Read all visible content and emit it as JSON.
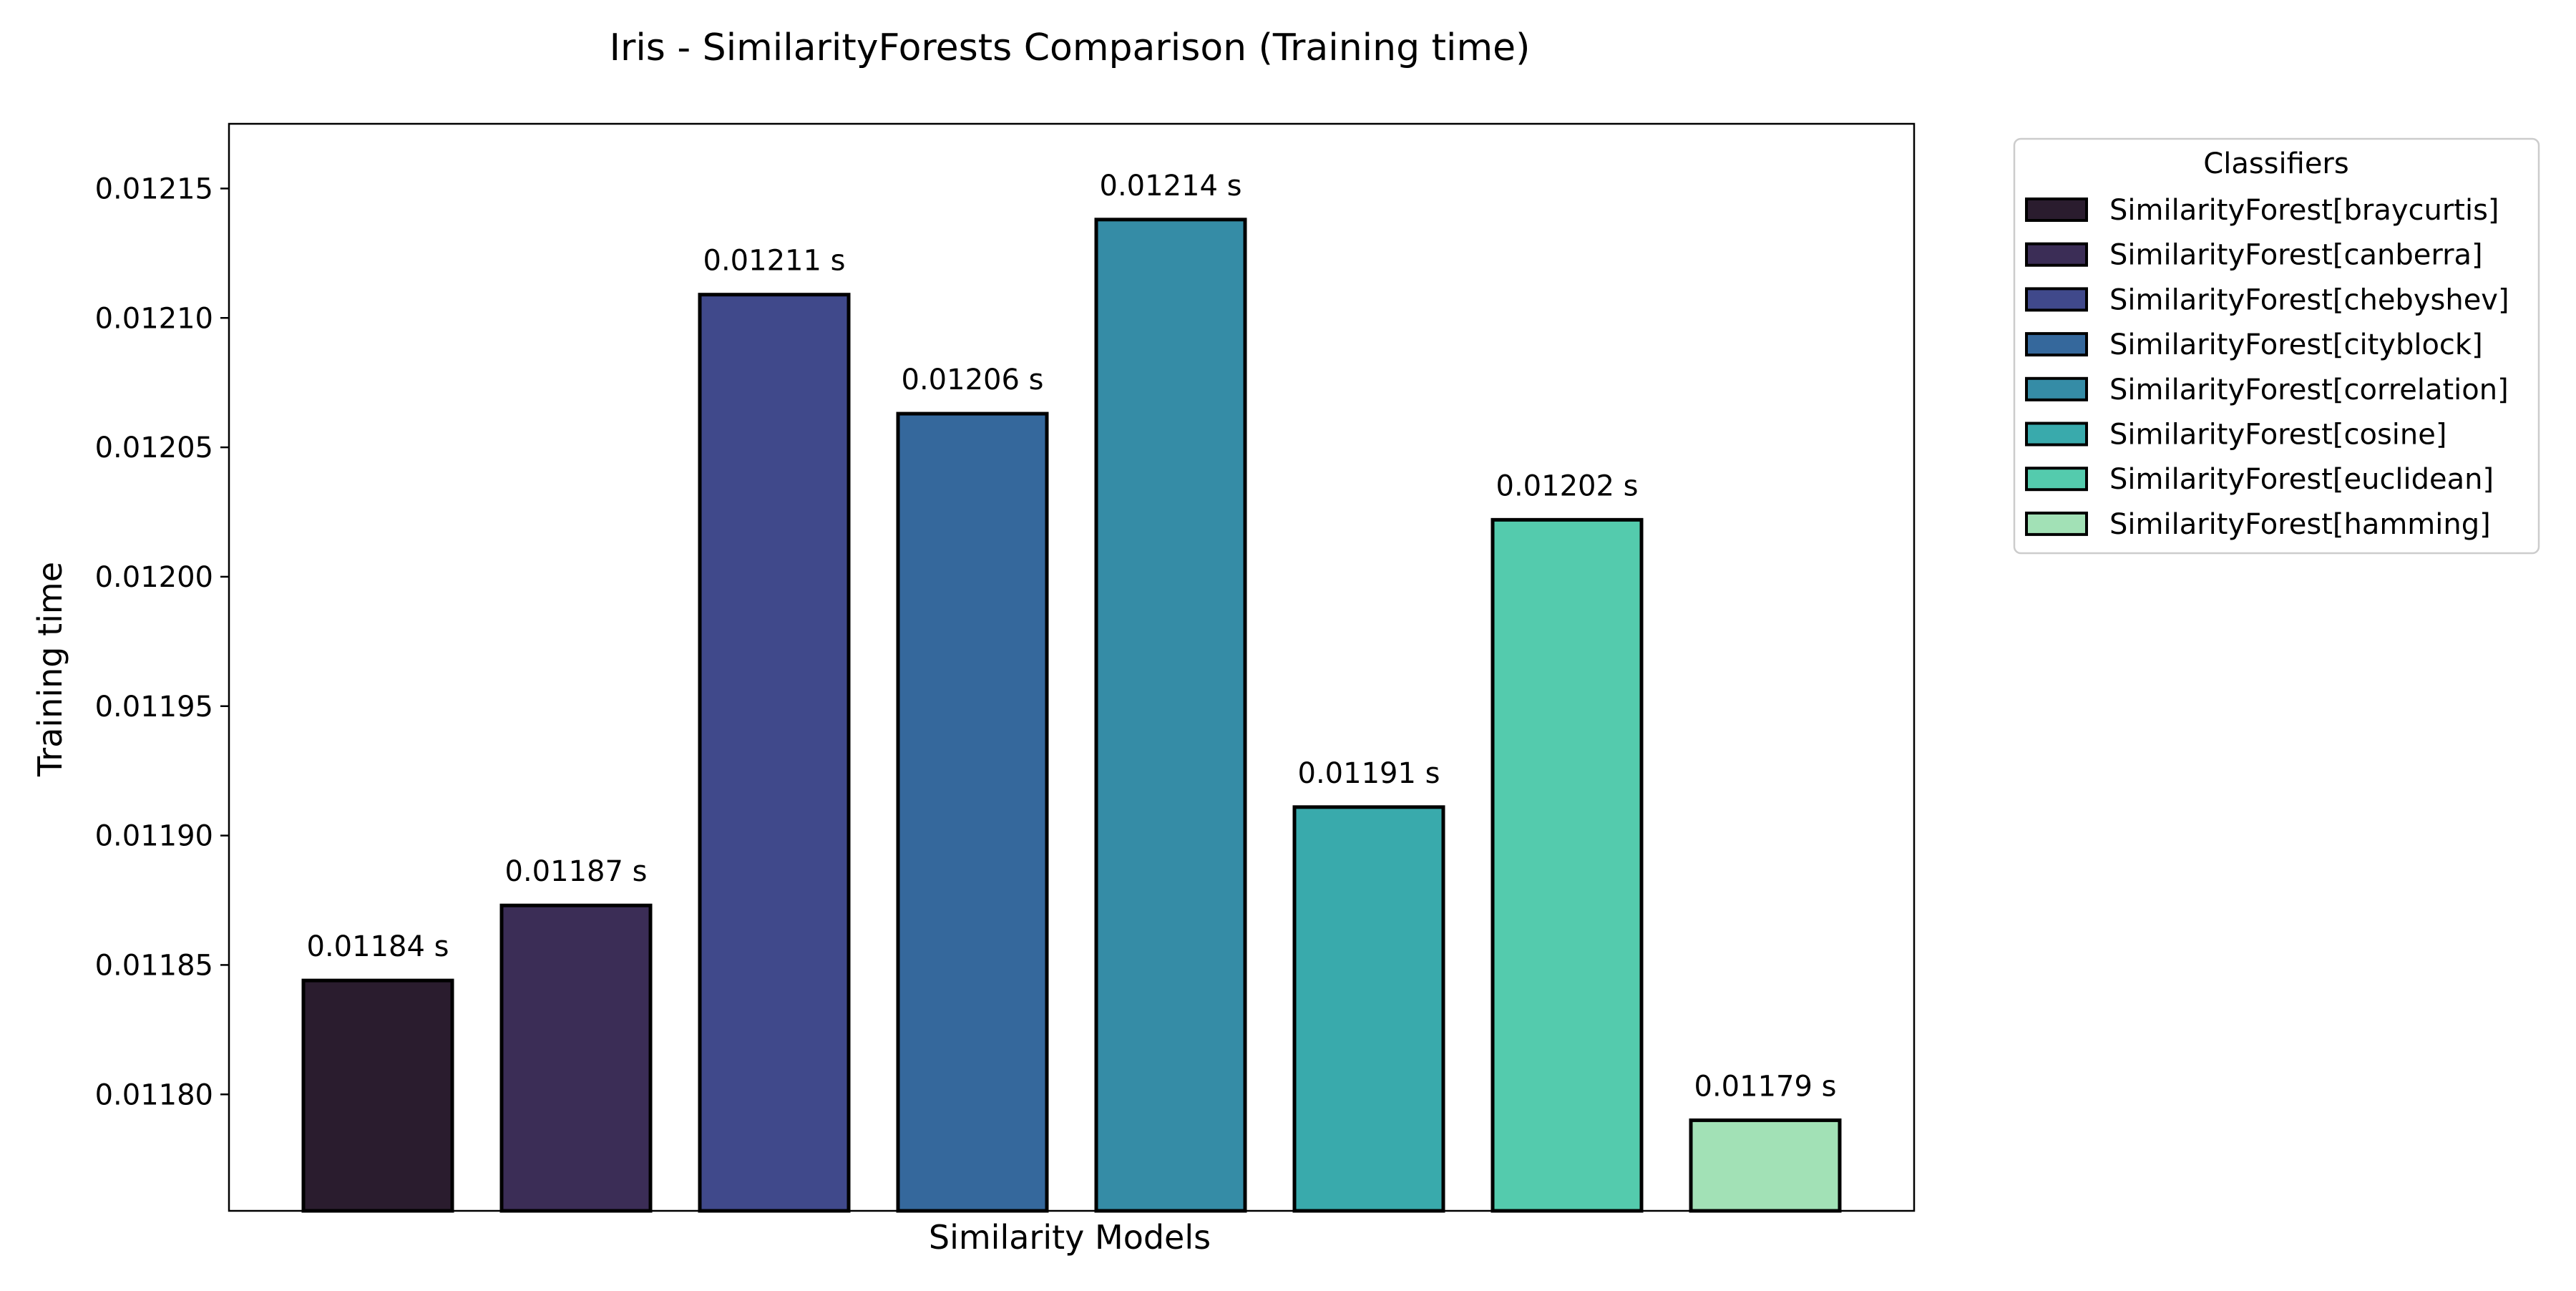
{
  "chart_data": {
    "type": "bar",
    "title": "Iris - SimilarityForests Comparison (Training time)",
    "xlabel": "Similarity Models",
    "ylabel": "Training time",
    "ylim": [
      0.011755,
      0.012175
    ],
    "yticks": [
      {
        "value": 0.0118,
        "label": "0.01180"
      },
      {
        "value": 0.01185,
        "label": "0.01185"
      },
      {
        "value": 0.0119,
        "label": "0.01190"
      },
      {
        "value": 0.01195,
        "label": "0.01195"
      },
      {
        "value": 0.012,
        "label": "0.01200"
      },
      {
        "value": 0.01205,
        "label": "0.01205"
      },
      {
        "value": 0.0121,
        "label": "0.01210"
      },
      {
        "value": 0.01215,
        "label": "0.01215"
      }
    ],
    "grid": false,
    "legend": {
      "title": "Classifiers",
      "placement": "outside-right-top"
    },
    "series": [
      {
        "name": "SimilarityForest[braycurtis]",
        "value": 0.011844,
        "label": "0.01184 s",
        "color": "#2a1c2e"
      },
      {
        "name": "SimilarityForest[canberra]",
        "value": 0.011873,
        "label": "0.01187 s",
        "color": "#3b2d56"
      },
      {
        "name": "SimilarityForest[chebyshev]",
        "value": 0.012109,
        "label": "0.01211 s",
        "color": "#40498b"
      },
      {
        "name": "SimilarityForest[cityblock]",
        "value": 0.012063,
        "label": "0.01206 s",
        "color": "#35689c"
      },
      {
        "name": "SimilarityForest[correlation]",
        "value": 0.012138,
        "label": "0.01214 s",
        "color": "#358ca6"
      },
      {
        "name": "SimilarityForest[cosine]",
        "value": 0.011911,
        "label": "0.01191 s",
        "color": "#39aaac"
      },
      {
        "name": "SimilarityForest[euclidean]",
        "value": 0.012022,
        "label": "0.01202 s",
        "color": "#54cbad"
      },
      {
        "name": "SimilarityForest[hamming]",
        "value": 0.01179,
        "label": "0.01179 s",
        "color": "#a2e1b6"
      }
    ]
  }
}
